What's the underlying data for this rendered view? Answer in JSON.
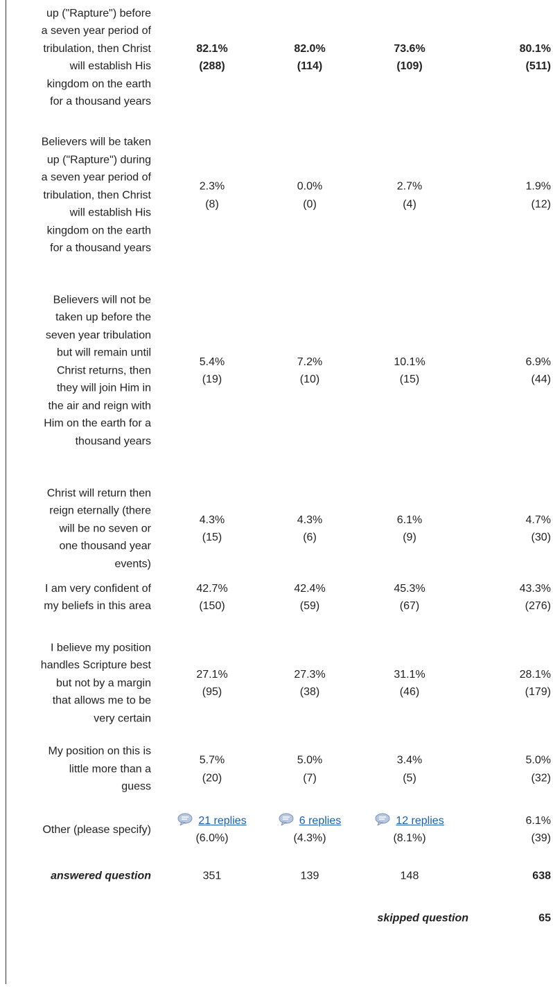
{
  "table": {
    "rows": [
      {
        "label_lines": [
          "up (\"Rapture\") before",
          "a seven year period of",
          "tribulation, then Christ",
          "will establish His",
          "kingdom on the earth",
          "for a thousand years"
        ],
        "bold": true,
        "cells": [
          [
            "82.1%",
            "(288)"
          ],
          [
            "82.0%",
            "(114)"
          ],
          [
            "73.6%",
            "(109)"
          ],
          [
            "80.1%",
            "(511)"
          ]
        ]
      },
      {
        "label_lines": [
          "Believers will be taken",
          "up (\"Rapture\") during",
          "a seven year period of",
          "tribulation, then Christ",
          "will establish His",
          "kingdom on the earth",
          "for a thousand years"
        ],
        "cells": [
          [
            "2.3%",
            "(8)"
          ],
          [
            "0.0%",
            "(0)"
          ],
          [
            "2.7%",
            "(4)"
          ],
          [
            "1.9%",
            "(12)"
          ]
        ]
      },
      {
        "label_lines": [
          "Believers will not be",
          "taken up before the",
          "seven year tribulation",
          "but will remain until",
          "Christ returns, then",
          "they will join Him in",
          "the air and reign with",
          "Him on the earth for a",
          "thousand years"
        ],
        "cells": [
          [
            "5.4%",
            "(19)"
          ],
          [
            "7.2%",
            "(10)"
          ],
          [
            "10.1%",
            "(15)"
          ],
          [
            "6.9%",
            "(44)"
          ]
        ]
      },
      {
        "label_lines": [
          "Christ will return then",
          "reign eternally (there",
          "will be no seven or",
          "one thousand year",
          "events)"
        ],
        "cells": [
          [
            "4.3%",
            "(15)"
          ],
          [
            "4.3%",
            "(6)"
          ],
          [
            "6.1%",
            "(9)"
          ],
          [
            "4.7%",
            "(30)"
          ]
        ]
      },
      {
        "label_lines": [
          "I am very confident of",
          "my beliefs in this area"
        ],
        "cells": [
          [
            "42.7%",
            "(150)"
          ],
          [
            "42.4%",
            "(59)"
          ],
          [
            "45.3%",
            "(67)"
          ],
          [
            "43.3%",
            "(276)"
          ]
        ]
      },
      {
        "label_lines": [
          "I believe my position",
          "handles Scripture best",
          "but not by a margin",
          "that allows me to be",
          "very certain"
        ],
        "cells": [
          [
            "27.1%",
            "(95)"
          ],
          [
            "27.3%",
            "(38)"
          ],
          [
            "31.1%",
            "(46)"
          ],
          [
            "28.1%",
            "(179)"
          ]
        ]
      },
      {
        "label_lines": [
          "My position on this is",
          "little more than a",
          "guess"
        ],
        "cells": [
          [
            "5.7%",
            "(20)"
          ],
          [
            "5.0%",
            "(7)"
          ],
          [
            "3.4%",
            "(5)"
          ],
          [
            "5.0%",
            "(32)"
          ]
        ]
      },
      {
        "label_lines": [
          "Other (please specify)"
        ],
        "cells": [
          [
            "21 replies",
            "(6.0%)"
          ],
          [
            "6 replies",
            "(4.3%)"
          ],
          [
            "12 replies",
            "(8.1%)"
          ],
          [
            "6.1%",
            "(39)"
          ]
        ],
        "links": [
          0,
          1,
          2
        ]
      }
    ],
    "answered": {
      "label": "answered question",
      "values": [
        "351",
        "139",
        "148",
        "638"
      ]
    },
    "skipped": {
      "label": "skipped question",
      "value": "65"
    }
  }
}
